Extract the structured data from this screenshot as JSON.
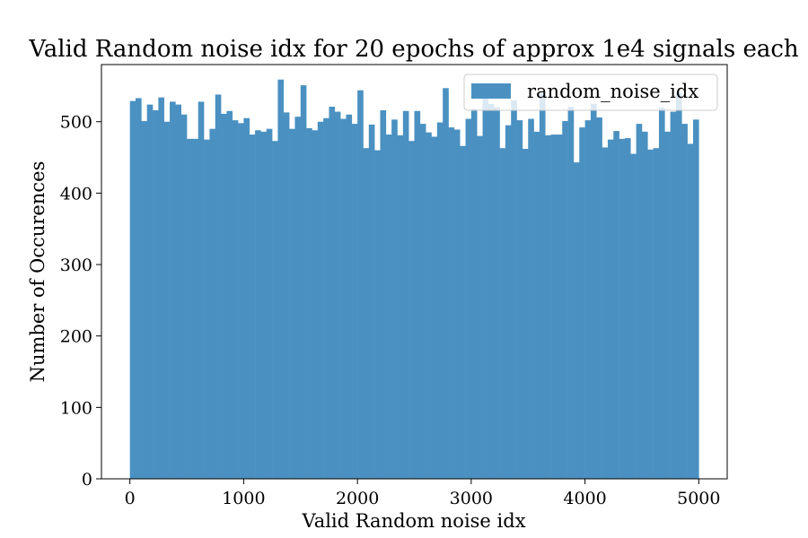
{
  "chart_data": {
    "type": "bar",
    "title": "Valid Random noise idx for 20 epochs of approx 1e4 signals each",
    "xlabel": "Valid Random noise idx",
    "ylabel": "Number of Occurences",
    "xlim": [
      -250,
      5250
    ],
    "ylim": [
      0,
      580
    ],
    "xticks": [
      0,
      1000,
      2000,
      3000,
      4000,
      5000
    ],
    "xtick_labels": [
      "0",
      "1000",
      "2000",
      "3000",
      "4000",
      "5000"
    ],
    "yticks": [
      0,
      100,
      200,
      300,
      400,
      500
    ],
    "ytick_labels": [
      "0",
      "100",
      "200",
      "300",
      "400",
      "500"
    ],
    "bin_range": [
      0,
      5000
    ],
    "grid": false,
    "legend_position": "top-right",
    "series": [
      {
        "name": "random_noise_idx",
        "color": "#4a91c2",
        "values": [
          529,
          533,
          501,
          524,
          516,
          534,
          500,
          528,
          524,
          510,
          476,
          476,
          528,
          475,
          490,
          538,
          511,
          515,
          502,
          498,
          505,
          482,
          488,
          486,
          490,
          473,
          559,
          513,
          490,
          507,
          551,
          491,
          488,
          500,
          505,
          521,
          514,
          504,
          510,
          497,
          544,
          463,
          496,
          460,
          516,
          482,
          503,
          481,
          515,
          473,
          515,
          497,
          485,
          479,
          499,
          547,
          492,
          489,
          466,
          504,
          518,
          480,
          540,
          525,
          520,
          463,
          495,
          530,
          502,
          462,
          504,
          486,
          540,
          481,
          482,
          482,
          501,
          521,
          443,
          492,
          502,
          525,
          506,
          464,
          475,
          487,
          476,
          477,
          455,
          497,
          486,
          461,
          463,
          520,
          486,
          514,
          540,
          497,
          469,
          503
        ]
      }
    ]
  }
}
